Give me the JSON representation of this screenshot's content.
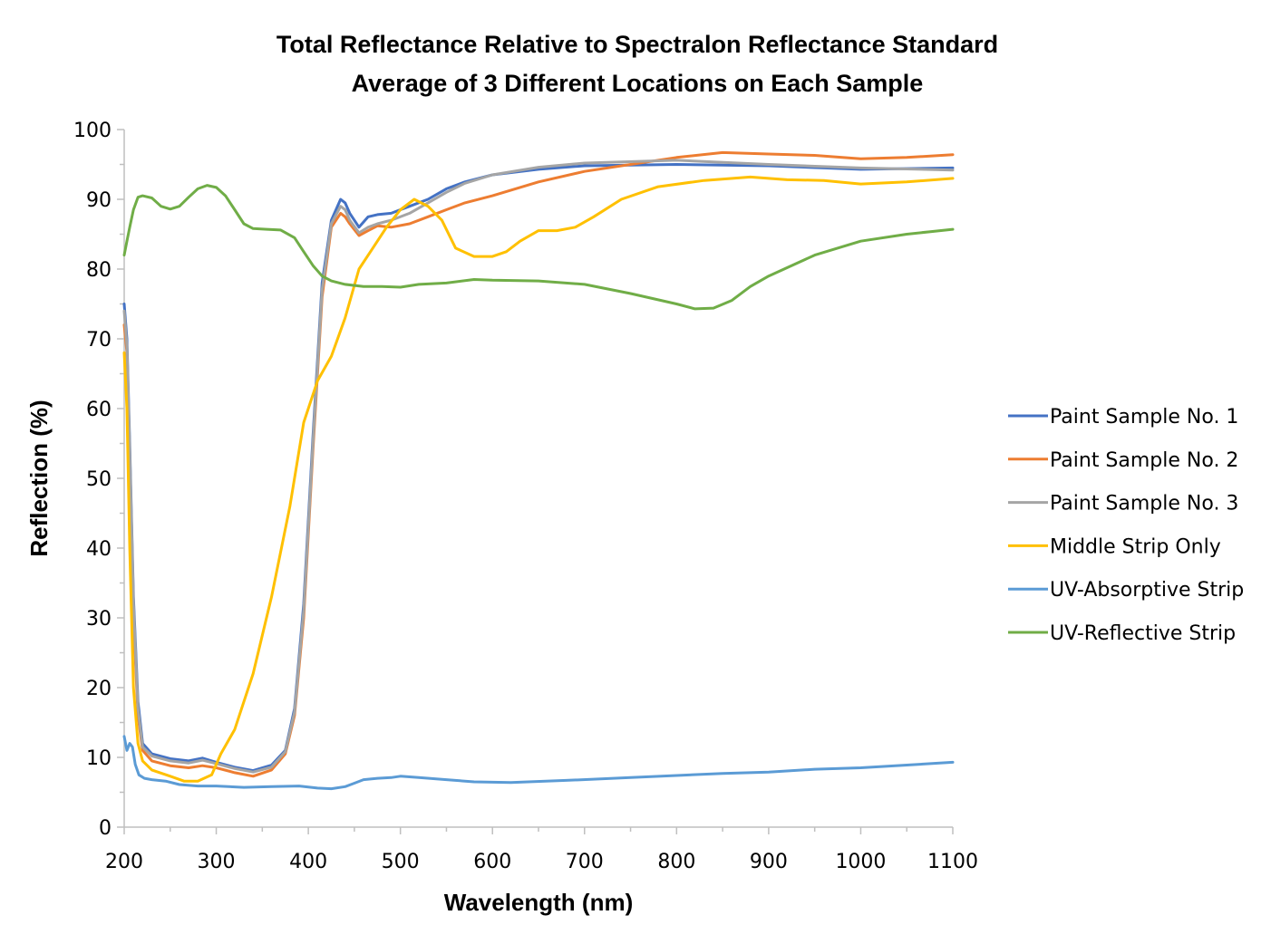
{
  "chart_data": {
    "type": "line",
    "title": "Total Reflectance Relative to Spectralon Reflectance Standard",
    "subtitle": "Average of 3 Different Locations on Each Sample",
    "xlabel": "Wavelength (nm)",
    "ylabel": "Reflection (%)",
    "xlim": [
      200,
      1100
    ],
    "ylim": [
      0,
      100
    ],
    "x_ticks": [
      "200",
      "300",
      "400",
      "500",
      "600",
      "700",
      "800",
      "900",
      "1000",
      "1100"
    ],
    "y_ticks": [
      "0",
      "10",
      "20",
      "30",
      "40",
      "50",
      "60",
      "70",
      "80",
      "90",
      "100"
    ],
    "grid": false,
    "legend_position": "right",
    "series": [
      {
        "name": "Paint Sample No. 1",
        "color": "#4472C4",
        "x": [
          200,
          203,
          206,
          210,
          215,
          220,
          230,
          250,
          270,
          285,
          300,
          320,
          340,
          360,
          375,
          385,
          395,
          405,
          415,
          425,
          435,
          440,
          445,
          455,
          465,
          475,
          490,
          510,
          530,
          550,
          570,
          600,
          650,
          700,
          800,
          900,
          1000,
          1100
        ],
        "y": [
          75,
          70,
          55,
          33,
          18,
          12,
          10.5,
          9.8,
          9.5,
          9.9,
          9.3,
          8.6,
          8.1,
          8.9,
          11,
          17,
          32,
          56,
          78,
          87,
          90,
          89.5,
          88,
          86,
          87.5,
          87.8,
          88,
          89,
          90,
          91.5,
          92.5,
          93.5,
          94.3,
          94.8,
          95,
          94.8,
          94.3,
          94.5
        ]
      },
      {
        "name": "Paint Sample No. 2",
        "color": "#ED7D31",
        "x": [
          200,
          203,
          206,
          210,
          215,
          220,
          230,
          250,
          270,
          285,
          300,
          320,
          340,
          360,
          375,
          385,
          395,
          405,
          415,
          425,
          435,
          440,
          445,
          455,
          465,
          475,
          490,
          510,
          530,
          550,
          570,
          600,
          650,
          700,
          750,
          800,
          850,
          900,
          950,
          1000,
          1050,
          1100
        ],
        "y": [
          72,
          68,
          52,
          30,
          16,
          11,
          9.5,
          8.8,
          8.5,
          8.8,
          8.5,
          7.8,
          7.3,
          8.2,
          10.5,
          16,
          30,
          54,
          76,
          86,
          88,
          87.5,
          86.5,
          84.8,
          85.5,
          86.2,
          86,
          86.5,
          87.5,
          88.5,
          89.5,
          90.5,
          92.5,
          94,
          95,
          96,
          96.7,
          96.5,
          96.3,
          95.8,
          96,
          96.4
        ]
      },
      {
        "name": "Paint Sample No. 3",
        "color": "#A5A5A5",
        "x": [
          200,
          203,
          206,
          210,
          215,
          220,
          230,
          250,
          270,
          285,
          300,
          320,
          340,
          360,
          375,
          385,
          395,
          405,
          415,
          425,
          435,
          440,
          445,
          455,
          465,
          475,
          490,
          510,
          530,
          550,
          570,
          600,
          650,
          700,
          800,
          900,
          1000,
          1100
        ],
        "y": [
          74,
          69,
          54,
          32,
          17,
          11.5,
          10.2,
          9.5,
          9.2,
          9.6,
          9.1,
          8.4,
          7.9,
          8.6,
          10.8,
          16.5,
          31,
          55,
          77,
          86.5,
          89,
          88.5,
          87,
          85.2,
          86,
          86.5,
          87,
          88,
          89.5,
          91,
          92.3,
          93.5,
          94.6,
          95.2,
          95.6,
          95,
          94.5,
          94.2
        ]
      },
      {
        "name": "Middle Strip Only",
        "color": "#FFC000",
        "x": [
          200,
          203,
          206,
          210,
          215,
          220,
          230,
          250,
          265,
          280,
          295,
          305,
          320,
          340,
          360,
          380,
          395,
          410,
          425,
          440,
          455,
          470,
          485,
          500,
          515,
          530,
          545,
          560,
          580,
          600,
          615,
          630,
          650,
          670,
          690,
          710,
          740,
          780,
          830,
          880,
          920,
          960,
          1000,
          1050,
          1100
        ],
        "y": [
          68,
          60,
          40,
          20,
          12,
          9.5,
          8.2,
          7.3,
          6.6,
          6.6,
          7.5,
          10.5,
          14,
          22,
          33,
          46,
          58,
          64,
          67.5,
          73,
          80,
          83,
          86,
          88.5,
          90,
          89,
          87,
          83,
          81.8,
          81.8,
          82.5,
          84,
          85.5,
          85.5,
          86,
          87.5,
          90,
          91.8,
          92.7,
          93.2,
          92.8,
          92.7,
          92.2,
          92.5,
          93
        ]
      },
      {
        "name": "UV-Absorptive Strip",
        "color": "#5B9BD5",
        "x": [
          200,
          203,
          206,
          209,
          212,
          216,
          222,
          230,
          245,
          260,
          280,
          300,
          330,
          360,
          390,
          410,
          425,
          440,
          450,
          460,
          475,
          490,
          500,
          520,
          550,
          580,
          620,
          680,
          750,
          800,
          850,
          900,
          950,
          1000,
          1050,
          1100
        ],
        "y": [
          13,
          11,
          12,
          11.5,
          9,
          7.5,
          7,
          6.8,
          6.6,
          6.1,
          5.9,
          5.9,
          5.7,
          5.8,
          5.9,
          5.6,
          5.5,
          5.8,
          6.3,
          6.8,
          7,
          7.1,
          7.3,
          7.1,
          6.8,
          6.5,
          6.4,
          6.7,
          7.1,
          7.4,
          7.7,
          7.9,
          8.3,
          8.5,
          8.9,
          9.3
        ]
      },
      {
        "name": "UV-Reflective Strip",
        "color": "#70AD47",
        "x": [
          200,
          203,
          206,
          210,
          215,
          220,
          230,
          240,
          250,
          260,
          270,
          280,
          290,
          300,
          310,
          320,
          330,
          340,
          355,
          370,
          385,
          395,
          405,
          415,
          425,
          440,
          460,
          480,
          500,
          520,
          550,
          580,
          600,
          650,
          700,
          750,
          800,
          820,
          840,
          860,
          880,
          900,
          950,
          1000,
          1050,
          1100
        ],
        "y": [
          82,
          84,
          86,
          88.5,
          90.3,
          90.5,
          90.2,
          89,
          88.6,
          89,
          90.3,
          91.5,
          92,
          91.7,
          90.5,
          88.5,
          86.5,
          85.8,
          85.7,
          85.6,
          84.5,
          82.5,
          80.5,
          79,
          78.3,
          77.8,
          77.5,
          77.5,
          77.4,
          77.8,
          78,
          78.5,
          78.4,
          78.3,
          77.8,
          76.5,
          75,
          74.3,
          74.4,
          75.5,
          77.5,
          79,
          82,
          84,
          85,
          85.7
        ]
      }
    ]
  }
}
